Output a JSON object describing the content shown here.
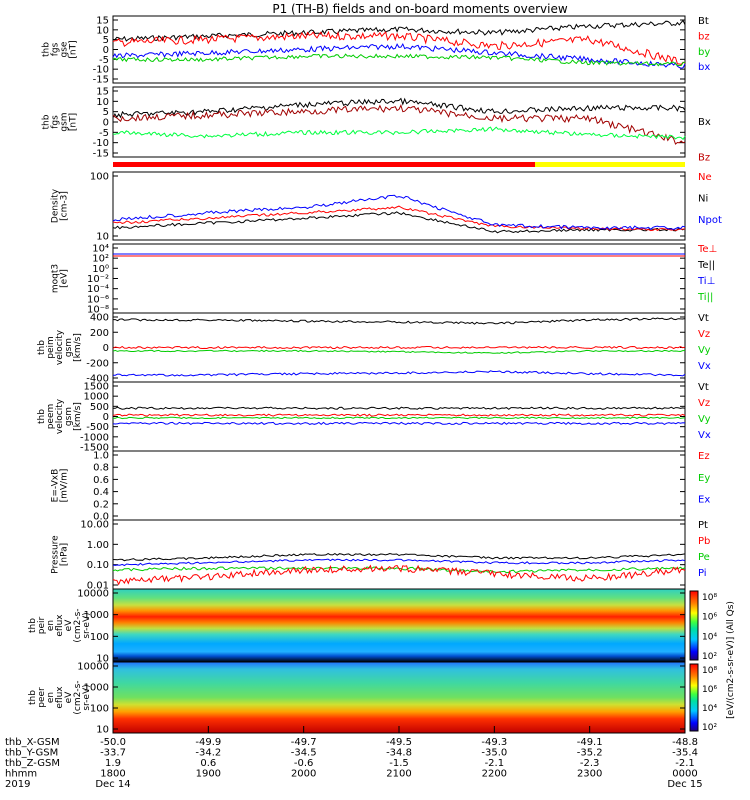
{
  "title": "P1 (TH-B) fields and on-board moments overview",
  "panels": [
    {
      "ylabel": [
        "thb",
        "fgs",
        "gse",
        "[nT]"
      ],
      "ticks": [
        "15",
        "10",
        "5",
        "0",
        "-5",
        "-10",
        "-15"
      ],
      "legend": [
        {
          "label": "Bt",
          "color": "#000000"
        },
        {
          "label": "bz",
          "color": "#ff0000"
        },
        {
          "label": "by",
          "color": "#00cc00"
        },
        {
          "label": "bx",
          "color": "#0000ff"
        }
      ]
    },
    {
      "ylabel": [
        "thb",
        "fgs",
        "gsm",
        "[nT]"
      ],
      "ticks": [
        "15",
        "10",
        "5",
        "0",
        "-5",
        "-10",
        "-15"
      ],
      "legend": [
        {
          "label": "Bx",
          "color": "#000000"
        },
        {
          "label": "Bz",
          "color": "#c00000"
        }
      ]
    },
    {
      "ylabel": [
        "Density",
        "[cm-3]"
      ],
      "ticks": [
        "100",
        "10"
      ],
      "legend": [
        {
          "label": "Ne",
          "color": "#ff0000"
        },
        {
          "label": "Ni",
          "color": "#000000"
        },
        {
          "label": "Npot",
          "color": "#0000ff"
        }
      ]
    },
    {
      "ylabel": [
        "moqt3",
        "[eV]"
      ],
      "ticks": [
        "10⁴",
        "10²",
        "10⁰",
        "10⁻²",
        "10⁻⁴",
        "10⁻⁶",
        "10⁻⁸"
      ],
      "legend": [
        {
          "label": "Te⊥",
          "color": "#ff0000"
        },
        {
          "label": "Te||",
          "color": "#000000"
        },
        {
          "label": "Ti⊥",
          "color": "#0000ff"
        },
        {
          "label": "Ti||",
          "color": "#00cc00"
        }
      ]
    },
    {
      "ylabel": [
        "thb",
        "peim",
        "velocity",
        "gsm",
        "[km/s]"
      ],
      "ticks": [
        "400",
        "200",
        "0",
        "-200",
        "-400"
      ],
      "legend": [
        {
          "label": "Vt",
          "color": "#000000"
        },
        {
          "label": "Vz",
          "color": "#ff0000"
        },
        {
          "label": "Vy",
          "color": "#00cc00"
        },
        {
          "label": "Vx",
          "color": "#0000ff"
        }
      ]
    },
    {
      "ylabel": [
        "thb",
        "peem",
        "velocity",
        "gsm",
        "[km/s]"
      ],
      "ticks": [
        "1500",
        "1000",
        "500",
        "0",
        "-500",
        "-1000",
        "-1500"
      ],
      "legend": [
        {
          "label": "Vt",
          "color": "#000000"
        },
        {
          "label": "Vz",
          "color": "#ff0000"
        },
        {
          "label": "Vy",
          "color": "#00cc00"
        },
        {
          "label": "Vx",
          "color": "#0000ff"
        }
      ]
    },
    {
      "ylabel": [
        "E=-VxB",
        "[mV/m]"
      ],
      "ticks": [
        "1.0",
        "0.8",
        "0.6",
        "0.4",
        "0.2",
        "0.0"
      ],
      "legend": [
        {
          "label": "Ez",
          "color": "#ff0000"
        },
        {
          "label": "Ey",
          "color": "#00cc00"
        },
        {
          "label": "Ex",
          "color": "#0000ff"
        }
      ]
    },
    {
      "ylabel": [
        "Pressure",
        "[nPa]"
      ],
      "ticks": [
        "10.00",
        "1.00",
        "0.10",
        "0.01"
      ],
      "legend": [
        {
          "label": "Pt",
          "color": "#000000"
        },
        {
          "label": "Pb",
          "color": "#ff0000"
        },
        {
          "label": "Pe",
          "color": "#00cc00"
        },
        {
          "label": "Pi",
          "color": "#0000ff"
        }
      ]
    },
    {
      "ylabel": [
        "thb",
        "peir",
        "en",
        "eflux",
        "eV",
        "(cm2-s-",
        "sr-eV)"
      ],
      "ticks": [
        "10000",
        "1000",
        "100",
        "10"
      ],
      "legend": []
    },
    {
      "ylabel": [
        "thb",
        "peer",
        "en",
        "eflux",
        "eV",
        "(cm2-s-",
        "sr-eV)"
      ],
      "ticks": [
        "10000",
        "1000",
        "100",
        "10"
      ],
      "legend": []
    }
  ],
  "colorbars": [
    {
      "ticks": [
        "10⁸",
        "10⁶",
        "10⁴",
        "10²"
      ],
      "label": "[eV/(cm2-s-sr-eV)] (All Qs)"
    },
    {
      "ticks": [
        "10⁸",
        "10⁶",
        "10⁴",
        "10²"
      ],
      "label": "[eV/(cm2-s-sr-eV)] (All Qs)"
    }
  ],
  "footer": {
    "rows": [
      {
        "label": "thb_X-GSM",
        "values": [
          "-50.0",
          "-49.9",
          "-49.7",
          "-49.5",
          "-49.3",
          "-49.1",
          "-48.8"
        ]
      },
      {
        "label": "thb_Y-GSM",
        "values": [
          "-33.7",
          "-34.2",
          "-34.5",
          "-34.8",
          "-35.0",
          "-35.2",
          "-35.4"
        ]
      },
      {
        "label": "thb_Z-GSM",
        "values": [
          "1.9",
          "0.6",
          "-0.6",
          "-1.5",
          "-2.1",
          "-2.3",
          "-2.1"
        ]
      },
      {
        "label": "hhmm",
        "values": [
          "1800",
          "1900",
          "2000",
          "2100",
          "2200",
          "2300",
          "0000"
        ]
      }
    ],
    "year": "2019",
    "date_start": "Dec 14",
    "date_end": "Dec 15"
  },
  "chart_data": [
    {
      "type": "line",
      "title": "P1 (TH-B) fields and on-board moments overview",
      "ylabel": "thb fgs gse [nT]",
      "ylim": [
        -15,
        15
      ],
      "x": [
        "1800",
        "1900",
        "2000",
        "2100",
        "2200",
        "2300",
        "0000"
      ],
      "series": [
        {
          "name": "Bt",
          "values": [
            5,
            6,
            8,
            9,
            8,
            10,
            12
          ]
        },
        {
          "name": "bz",
          "values": [
            3,
            5,
            6,
            7,
            4,
            4,
            0
          ]
        },
        {
          "name": "by",
          "values": [
            -3,
            -4,
            -3,
            -2,
            -3,
            -5,
            -7
          ]
        },
        {
          "name": "bx",
          "values": [
            1,
            2,
            3,
            5,
            2,
            -2,
            -8
          ]
        }
      ]
    },
    {
      "type": "line",
      "ylabel": "thb fgs gsm [nT]",
      "ylim": [
        -15,
        15
      ],
      "x": [
        "1800",
        "1900",
        "2000",
        "2100",
        "2200",
        "2300",
        "0000"
      ],
      "series": [
        {
          "name": "Bx",
          "values": [
            2,
            4,
            6,
            8,
            3,
            5,
            8
          ]
        },
        {
          "name": "Bz",
          "values": [
            1,
            3,
            5,
            7,
            2,
            2,
            -5
          ]
        }
      ]
    },
    {
      "type": "line",
      "ylabel": "Density [cm-3]",
      "ylim": [
        8,
        200
      ],
      "yscale": "log",
      "x": [
        "1800",
        "1900",
        "2000",
        "2100",
        "2200",
        "2300",
        "0000"
      ],
      "series": [
        {
          "name": "Ne",
          "values": [
            15,
            25,
            30,
            40,
            15,
            15,
            15
          ]
        },
        {
          "name": "Ni",
          "values": [
            12,
            20,
            25,
            30,
            12,
            10,
            10
          ]
        },
        {
          "name": "Npot",
          "values": [
            20,
            30,
            40,
            60,
            20,
            20,
            18
          ]
        }
      ]
    },
    {
      "type": "line",
      "ylabel": "thb peim velocity gsm [km/s]",
      "ylim": [
        -400,
        400
      ],
      "x": [
        "1800",
        "1900",
        "2000",
        "2100",
        "2200",
        "2300",
        "0000"
      ],
      "series": [
        {
          "name": "Vt",
          "values": [
            340,
            350,
            330,
            330,
            320,
            350,
            360
          ]
        },
        {
          "name": "Vz",
          "values": [
            0,
            0,
            0,
            0,
            0,
            0,
            0
          ]
        },
        {
          "name": "Vy",
          "values": [
            -20,
            -20,
            -20,
            -20,
            -30,
            -20,
            -20
          ]
        },
        {
          "name": "Vx",
          "values": [
            -340,
            -340,
            -330,
            -330,
            -320,
            -340,
            -340
          ]
        }
      ]
    },
    {
      "type": "line",
      "ylabel": "thb peem velocity gsm [km/s]",
      "ylim": [
        -1500,
        1500
      ],
      "x": [
        "1800",
        "1900",
        "2000",
        "2100",
        "2200",
        "2300",
        "0000"
      ],
      "series": [
        {
          "name": "Vt",
          "values": [
            300,
            300,
            300,
            300,
            300,
            300,
            300
          ]
        },
        {
          "name": "Vz",
          "values": [
            0,
            0,
            0,
            0,
            0,
            0,
            0
          ]
        },
        {
          "name": "Vy",
          "values": [
            -50,
            -50,
            -50,
            -50,
            -50,
            -50,
            -50
          ]
        },
        {
          "name": "Vx",
          "values": [
            -300,
            -300,
            -300,
            -300,
            -300,
            -300,
            -300
          ]
        }
      ]
    },
    {
      "type": "line",
      "ylabel": "Pressure [nPa]",
      "ylim": [
        0.005,
        10
      ],
      "yscale": "log",
      "x": [
        "1800",
        "1900",
        "2000",
        "2100",
        "2200",
        "2300",
        "0000"
      ],
      "series": [
        {
          "name": "Pt",
          "values": [
            0.15,
            0.2,
            0.25,
            0.25,
            0.2,
            0.2,
            0.25
          ]
        },
        {
          "name": "Pb",
          "values": [
            0.01,
            0.02,
            0.04,
            0.05,
            0.03,
            0.03,
            0.05
          ]
        },
        {
          "name": "Pe",
          "values": [
            0.05,
            0.06,
            0.05,
            0.05,
            0.03,
            0.04,
            0.05
          ]
        },
        {
          "name": "Pi",
          "values": [
            0.1,
            0.15,
            0.2,
            0.2,
            0.15,
            0.15,
            0.2
          ]
        }
      ]
    }
  ]
}
